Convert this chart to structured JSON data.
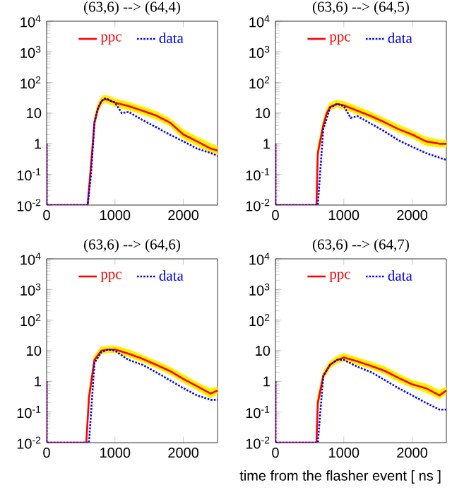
{
  "chart_data": [
    {
      "type": "line",
      "title": "(63,6) --> (64,4)",
      "log": true,
      "legend": "top",
      "xlim": [
        0,
        2500
      ],
      "ylim": [
        0.01,
        10000
      ],
      "xticks": [
        0,
        1000,
        2000
      ],
      "yticks": [
        {
          "value": 0.01,
          "label": "10$^{-2}$"
        },
        {
          "value": 0.1,
          "label": "10$^{-1}$"
        },
        1,
        10,
        {
          "value": 100,
          "label": "10$^{2}$"
        },
        {
          "value": 1000,
          "label": "10$^{3}$"
        },
        {
          "value": 10000,
          "label": "10$^{4}$"
        }
      ],
      "series": [
        {
          "name": "ppc",
          "color": "#ff0000",
          "line_style": "solid",
          "x": [
            0,
            0,
            600,
            650,
            700,
            750,
            800,
            850,
            900,
            1000,
            1200,
            1400,
            1600,
            1800,
            2000,
            2200,
            2400,
            2500
          ],
          "values": [
            1,
            0.01,
            0.01,
            0.2,
            5,
            14,
            24,
            29,
            27,
            22,
            17,
            12,
            8.4,
            5,
            2,
            1.2,
            0.7,
            0.6
          ],
          "upper": [
            1,
            0.01,
            0.01,
            0.3,
            7,
            19,
            32,
            38,
            36,
            29,
            22,
            16,
            11,
            6.5,
            2.8,
            1.6,
            1,
            0.8
          ],
          "lower": [
            1,
            0.01,
            0.01,
            0.15,
            4,
            11,
            19,
            23,
            21,
            17,
            13,
            9.5,
            6.5,
            4,
            1.5,
            0.9,
            0.55,
            0.45
          ]
        },
        {
          "name": "data",
          "color": "#0000ff",
          "line_style": "dotted",
          "x": [
            0,
            0,
            600,
            650,
            700,
            750,
            800,
            850,
            900,
            1000,
            1100,
            1200,
            1400,
            1600,
            1800,
            2000,
            2200,
            2400,
            2500
          ],
          "values": [
            1,
            0.01,
            0.01,
            0.1,
            5,
            14,
            25,
            30,
            28,
            22,
            10,
            11,
            6,
            3.5,
            2,
            1.2,
            0.7,
            0.5,
            0.4
          ]
        }
      ]
    },
    {
      "type": "line",
      "title": "(63,6) --> (64,5)",
      "log": true,
      "legend": "top",
      "xlim": [
        0,
        2500
      ],
      "ylim": [
        0.01,
        10000
      ],
      "xticks": [
        0,
        1000,
        2000
      ],
      "yticks": [
        {
          "value": 0.01,
          "label": "10$^{-2}$"
        },
        {
          "value": 0.1,
          "label": "10$^{-1}$"
        },
        1,
        10,
        {
          "value": 100,
          "label": "10$^{2}$"
        },
        {
          "value": 1000,
          "label": "10$^{3}$"
        },
        {
          "value": 10000,
          "label": "10$^{4}$"
        }
      ],
      "series": [
        {
          "name": "ppc",
          "color": "#ff0000",
          "line_style": "solid",
          "x": [
            0,
            0,
            600,
            620,
            700,
            750,
            800,
            900,
            1000,
            1200,
            1400,
            1600,
            1800,
            2000,
            2200,
            2400,
            2500
          ],
          "values": [
            1,
            0.01,
            0.01,
            0.5,
            4,
            10,
            16,
            20,
            18,
            12,
            8,
            5,
            3,
            2,
            1.2,
            1,
            1
          ],
          "upper": [
            1,
            0.01,
            0.01,
            0.7,
            5.5,
            13,
            21,
            26,
            23,
            16,
            10.5,
            6.5,
            4,
            2.6,
            1.6,
            1.3,
            1.3
          ],
          "lower": [
            1,
            0.01,
            0.01,
            0.4,
            3,
            8,
            13,
            16,
            14,
            9.5,
            6.5,
            4,
            2.4,
            1.6,
            0.9,
            0.8,
            0.8
          ]
        },
        {
          "name": "data",
          "color": "#0000ff",
          "line_style": "dotted",
          "x": [
            0,
            0,
            620,
            700,
            800,
            900,
            1000,
            1100,
            1200,
            1400,
            1600,
            1800,
            2000,
            2200,
            2400,
            2500
          ],
          "values": [
            1,
            0.01,
            0.01,
            3,
            15,
            20,
            17,
            7,
            8,
            4.5,
            2.5,
            1.3,
            0.8,
            0.5,
            0.35,
            0.3
          ]
        }
      ]
    },
    {
      "type": "line",
      "title": "(63,6) --> (64,6)",
      "log": true,
      "legend": "top",
      "xlim": [
        0,
        2500
      ],
      "ylim": [
        0.01,
        10000
      ],
      "xticks": [
        0,
        1000,
        2000
      ],
      "yticks": [
        {
          "value": 0.01,
          "label": "10$^{-2}$"
        },
        {
          "value": 0.1,
          "label": "10$^{-1}$"
        },
        1,
        10,
        {
          "value": 100,
          "label": "10$^{2}$"
        },
        {
          "value": 1000,
          "label": "10$^{3}$"
        },
        {
          "value": 10000,
          "label": "10$^{4}$"
        }
      ],
      "series": [
        {
          "name": "ppc",
          "color": "#ff0000",
          "line_style": "solid",
          "x": [
            0,
            0,
            580,
            620,
            700,
            800,
            900,
            1000,
            1200,
            1400,
            1600,
            1800,
            2000,
            2200,
            2400,
            2500
          ],
          "values": [
            1,
            0.01,
            0.01,
            0.3,
            5,
            10,
            11,
            11,
            8,
            5.5,
            3.5,
            2.2,
            1.2,
            0.7,
            0.4,
            0.5
          ],
          "upper": [
            1,
            0.01,
            0.01,
            0.4,
            6.5,
            13,
            14,
            14,
            10.5,
            7,
            4.5,
            2.9,
            1.6,
            0.9,
            0.55,
            0.65
          ],
          "lower": [
            1,
            0.01,
            0.01,
            0.25,
            4,
            8,
            9,
            9,
            6.5,
            4.4,
            2.8,
            1.8,
            0.95,
            0.55,
            0.3,
            0.4
          ]
        },
        {
          "name": "data",
          "color": "#0000ff",
          "line_style": "dotted",
          "x": [
            0,
            0,
            620,
            700,
            800,
            900,
            1000,
            1200,
            1400,
            1600,
            1800,
            2000,
            2200,
            2400,
            2500
          ],
          "values": [
            1,
            0.01,
            0.01,
            4,
            9,
            11,
            10,
            5,
            3.5,
            2,
            1.1,
            0.6,
            0.35,
            0.25,
            0.25
          ]
        }
      ]
    },
    {
      "type": "line",
      "title": "(63,6) --> (64,7)",
      "xlabel": "time from the flasher event [ ns ]",
      "log": true,
      "legend": "top",
      "xlim": [
        0,
        2500
      ],
      "ylim": [
        0.01,
        10000
      ],
      "xticks": [
        0,
        1000,
        2000
      ],
      "yticks": [
        {
          "value": 0.01,
          "label": "10$^{-2}$"
        },
        {
          "value": 0.1,
          "label": "10$^{-1}$"
        },
        1,
        10,
        {
          "value": 100,
          "label": "10$^{2}$"
        },
        {
          "value": 1000,
          "label": "10$^{3}$"
        },
        {
          "value": 10000,
          "label": "10$^{4}$"
        }
      ],
      "series": [
        {
          "name": "ppc",
          "color": "#ff0000",
          "line_style": "solid",
          "x": [
            0,
            0,
            600,
            620,
            700,
            800,
            900,
            1000,
            1200,
            1400,
            1600,
            1800,
            2000,
            2200,
            2400,
            2500
          ],
          "values": [
            1,
            0.01,
            0.01,
            0.2,
            1.5,
            3.5,
            5,
            6,
            4.5,
            3.2,
            2.2,
            1.3,
            0.8,
            0.6,
            0.35,
            0.5
          ],
          "upper": [
            1,
            0.01,
            0.01,
            0.3,
            2,
            4.5,
            6.5,
            7.8,
            5.8,
            4.2,
            2.9,
            1.7,
            1.05,
            0.8,
            0.5,
            0.65
          ],
          "lower": [
            1,
            0.01,
            0.01,
            0.15,
            1.2,
            2.8,
            4,
            4.8,
            3.6,
            2.6,
            1.8,
            1,
            0.65,
            0.45,
            0.28,
            0.4
          ]
        },
        {
          "name": "data",
          "color": "#0000ff",
          "line_style": "dotted",
          "x": [
            0,
            0,
            620,
            700,
            800,
            900,
            1000,
            1200,
            1400,
            1600,
            1800,
            2000,
            2200,
            2400,
            2500
          ],
          "values": [
            1,
            0.01,
            0.01,
            1.5,
            3.5,
            5,
            5,
            3,
            2,
            1.1,
            0.6,
            0.35,
            0.2,
            0.12,
            0.12
          ]
        }
      ]
    }
  ]
}
